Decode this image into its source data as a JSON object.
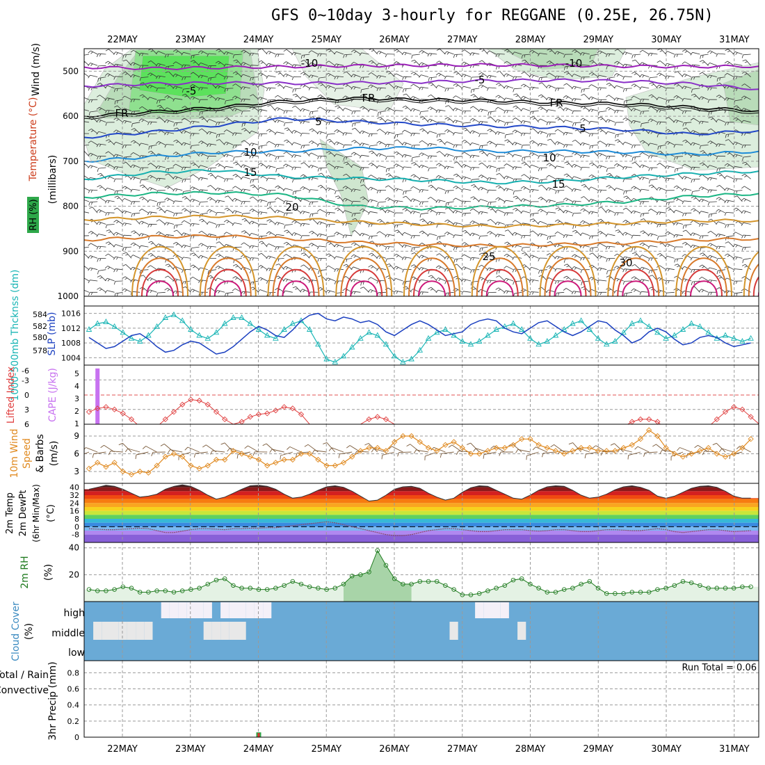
{
  "title": "GFS 0~10day 3-hourly for REGGANE (0.25E, 26.75N)",
  "dates": [
    "22MAY",
    "23MAY",
    "24MAY",
    "25MAY",
    "26MAY",
    "27MAY",
    "28MAY",
    "29MAY",
    "30MAY",
    "31MAY"
  ],
  "colors": {
    "frame": "#000000",
    "grid": "#999999",
    "rh_fill": "#2ea84a",
    "cloud": "#6aaad6",
    "cloud_clear": "#f4f0f8",
    "green_line": "#1e7a1e"
  },
  "chart_data": [
    {
      "type": "heatmap",
      "name": "upper-air",
      "ylabel_parts": [
        "Wind (m/s)",
        "Temperature (°C)",
        "RH (%)",
        "(millibars)"
      ],
      "yticks": [
        500,
        600,
        700,
        800,
        900,
        1000
      ],
      "ylim": [
        450,
        1000
      ],
      "isotherm_labels": [
        "-10",
        "-5",
        "FR",
        "5",
        "10",
        "15",
        "20",
        "25",
        "30"
      ],
      "isotherms": [
        {
          "t": -10,
          "p": [
            491,
            494,
            492,
            490,
            488,
            487,
            486,
            487,
            489,
            490,
            489
          ]
        },
        {
          "t": -5,
          "p": [
            533,
            528,
            526,
            527,
            526,
            524,
            521,
            520,
            522,
            528,
            540
          ]
        },
        {
          "t": 0,
          "p": [
            600,
            590,
            580,
            566,
            560,
            563,
            565,
            570,
            572,
            580,
            588
          ]
        },
        {
          "t": 5,
          "p": [
            647,
            635,
            620,
            605,
            612,
            618,
            622,
            625,
            630,
            640,
            632
          ]
        },
        {
          "t": 10,
          "p": [
            700,
            690,
            680,
            678,
            672,
            670,
            678,
            678,
            680,
            685,
            678
          ]
        },
        {
          "t": 15,
          "p": [
            740,
            725,
            720,
            735,
            738,
            742,
            748,
            745,
            735,
            728,
            722
          ]
        },
        {
          "t": 20,
          "p": [
            780,
            772,
            770,
            775,
            800,
            805,
            802,
            798,
            790,
            778,
            772
          ]
        },
        {
          "t": 25,
          "p": [
            830,
            825,
            822,
            826,
            835,
            840,
            845,
            842,
            838,
            832,
            832
          ]
        },
        {
          "t": 30,
          "p": [
            875,
            868,
            866,
            872,
            880,
            885,
            888,
            885,
            882,
            875,
            872
          ]
        }
      ]
    },
    {
      "type": "line",
      "name": "thickness-slp",
      "ylabel_left": "1000-500mb Thcknss (dm)",
      "ylabel_right": "SLP (mb)",
      "yticks_left": [
        "584",
        "582",
        "580",
        "578"
      ],
      "yticks_right": [
        "1016",
        "1012",
        "1008",
        "1004"
      ],
      "series": [
        {
          "name": "SLP",
          "values": [
            1009.5,
            1008,
            1006.5,
            1007,
            1008.5,
            1010,
            1010.5,
            1009,
            1007,
            1005.5,
            1006,
            1007.5,
            1008.5,
            1008,
            1006.5,
            1005,
            1005.5,
            1007,
            1009,
            1011,
            1012.5,
            1011.5,
            1010,
            1009.5,
            1011.5,
            1014,
            1015.5,
            1016,
            1014.5,
            1014,
            1015,
            1014.5,
            1013.5,
            1014,
            1013,
            1011,
            1010,
            1011.5,
            1013,
            1014,
            1013,
            1011.5,
            1010,
            1010.5,
            1011,
            1013,
            1014,
            1014.5,
            1014,
            1012,
            1011,
            1010.5,
            1012,
            1013.5,
            1014,
            1012.5,
            1011,
            1010,
            1011,
            1012.5,
            1014,
            1013.5,
            1011.5,
            1010,
            1008,
            1009,
            1011,
            1012,
            1011,
            1009,
            1007.5,
            1008,
            1009.5,
            1010,
            1009.5,
            1008,
            1007,
            1007.5,
            1008
          ]
        },
        {
          "name": "Thickness",
          "values": [
            582.5,
            583.5,
            583.8,
            583,
            582,
            581,
            580.5,
            581.5,
            583,
            584.5,
            585,
            584,
            582.5,
            581.5,
            581,
            582,
            583.5,
            584.5,
            584.5,
            583.5,
            582.5,
            581.5,
            581,
            582.5,
            583.5,
            584,
            582.5,
            580,
            577.5,
            577,
            578,
            579.5,
            581,
            582,
            581.5,
            580,
            578,
            577,
            577.5,
            579,
            581,
            582,
            582.5,
            581.5,
            580.5,
            580,
            580.5,
            581.5,
            582.5,
            583,
            583.5,
            582.5,
            581,
            580,
            580.5,
            581.5,
            582.5,
            583.5,
            584,
            582.5,
            581,
            580,
            580.5,
            582,
            583.5,
            584,
            583,
            582,
            581,
            581.5,
            582.5,
            583.5,
            583,
            582,
            581,
            581.5,
            581,
            580.5,
            581
          ]
        }
      ]
    },
    {
      "type": "line",
      "name": "cape-lifted-index",
      "ylabel_left": "Lifted Index",
      "ylabel_right": "CAPE (J/kg)",
      "yticks_left": [
        "-6",
        "-3",
        "0",
        "3",
        "6"
      ],
      "yticks_right": [
        "5",
        "4",
        "3",
        "2",
        "1"
      ],
      "series": [
        {
          "name": "Lifted Index",
          "values": [
            3.5,
            2.8,
            2.5,
            3,
            3.8,
            5,
            6.5,
            7,
            6.5,
            5,
            3.5,
            2,
            1,
            1.2,
            2,
            3.5,
            5,
            6,
            5.5,
            4.5,
            4,
            3.8,
            3.2,
            2.5,
            2.8,
            4,
            6,
            7,
            7.5,
            7,
            7,
            6.5,
            6,
            5,
            4.5,
            5,
            6,
            7,
            7,
            7,
            6.5,
            6.5,
            6.5,
            7,
            7,
            7,
            7,
            7,
            7,
            7,
            7,
            7,
            7,
            7,
            7,
            7,
            7,
            7,
            7,
            7,
            7,
            7,
            7,
            6.5,
            5.5,
            5,
            5,
            5.5,
            7,
            7,
            7,
            7,
            7,
            6.5,
            5,
            3.5,
            2.5,
            3,
            4.5,
            6,
            7
          ]
        },
        {
          "name": "CAPE",
          "values": [
            0,
            5,
            0,
            0,
            0,
            0,
            0,
            0,
            0,
            0,
            0,
            0,
            0,
            0,
            0,
            0,
            0,
            0,
            0,
            0,
            0,
            0,
            0,
            0,
            0,
            0,
            0,
            0,
            0,
            0,
            0,
            0,
            0,
            0,
            0,
            0,
            0,
            0,
            0,
            0,
            0,
            0,
            0,
            0,
            0,
            0,
            0,
            0,
            0,
            0,
            0,
            0,
            0,
            0,
            0,
            0,
            0,
            0,
            0,
            0,
            0,
            0,
            0,
            0,
            0,
            0,
            0,
            0,
            0,
            0,
            0,
            0,
            0,
            0,
            0,
            0,
            0,
            0,
            0
          ]
        }
      ]
    },
    {
      "type": "line",
      "name": "10m-wind",
      "ylabel": "10m Wind Speed & Barbs (m/s)",
      "yticks": [
        "9",
        "6",
        "3"
      ],
      "ylim": [
        1,
        11
      ],
      "series": [
        {
          "name": "Wind Speed",
          "values": [
            3.5,
            4.5,
            3.8,
            4.5,
            3,
            2.5,
            3,
            2.8,
            4,
            5.5,
            6,
            5.5,
            4,
            3.5,
            4,
            5,
            5,
            6.5,
            6,
            5.5,
            5,
            4,
            4.5,
            5,
            5,
            6,
            6,
            5,
            4,
            4,
            4.5,
            5.5,
            6.5,
            7,
            7,
            6.5,
            8,
            9,
            9,
            8,
            7,
            6.5,
            7.5,
            8,
            7,
            6,
            6,
            6.5,
            7,
            7,
            7.5,
            8.5,
            8.5,
            7.5,
            7,
            6.5,
            6,
            6.5,
            7,
            7,
            6.5,
            6.5,
            6.5,
            7,
            7.5,
            8.5,
            10,
            9,
            7,
            6,
            5.5,
            6,
            6.5,
            7,
            6,
            5.5,
            6,
            7,
            8.5
          ]
        }
      ]
    },
    {
      "type": "area",
      "name": "2m-temp",
      "ylabel": "2m Temp 2m DewPt (6hr Min/Max) (°C)",
      "yticks": [
        "40",
        "32",
        "24",
        "16",
        "8",
        "0",
        "-8"
      ],
      "ylim": [
        -16,
        44
      ],
      "series": [
        {
          "name": "2m Temp",
          "values": [
            38,
            40,
            42,
            41,
            38,
            34,
            30,
            31,
            33,
            38,
            41,
            42.5,
            41,
            37,
            32,
            28,
            30,
            34,
            38,
            41.5,
            42,
            41,
            38,
            33,
            29,
            30,
            33,
            37,
            40.5,
            41.5,
            40,
            36,
            31,
            26,
            27,
            32,
            38,
            40.5,
            41,
            39,
            34,
            30,
            27,
            29,
            35,
            39.5,
            41.5,
            41,
            37,
            33,
            29,
            28,
            32,
            37,
            40.5,
            41.5,
            41,
            37,
            32,
            29,
            30,
            33,
            37.5,
            40.5,
            41.5,
            40,
            37,
            31,
            29,
            31,
            35,
            39,
            41,
            41.5,
            40,
            36,
            31,
            29,
            29
          ]
        },
        {
          "name": "2m DewPt",
          "values": [
            -2,
            -2.5,
            -3,
            -3,
            -2.5,
            -2,
            -1.5,
            -2,
            -4,
            -6,
            -6,
            -4.5,
            -3,
            -2,
            -2,
            -2.5,
            -3,
            -2,
            -2,
            -1.5,
            -1.5,
            -1,
            -1,
            0,
            1,
            2,
            3,
            4,
            5,
            4,
            2,
            0,
            -2,
            -4,
            -6,
            -8,
            -9,
            -9,
            -8,
            -6,
            -4,
            -3,
            -2,
            -2,
            -3,
            -4,
            -5,
            -5,
            -4,
            -3,
            -3,
            -3,
            -4,
            -4.5,
            -4,
            -3,
            -3,
            -4,
            -5,
            -5,
            -4,
            -3,
            -3,
            -3.5,
            -4,
            -4,
            -3,
            -2,
            -3,
            -5,
            -6,
            -5,
            -4,
            -3,
            -3,
            -4,
            -5,
            -4.5,
            -4
          ]
        }
      ]
    },
    {
      "type": "area",
      "name": "2m-rh",
      "ylabel": "2m RH (%)",
      "yticks": [
        "40",
        "20"
      ],
      "ylim": [
        0,
        44
      ],
      "series": [
        {
          "name": "2m RH",
          "values": [
            9,
            8,
            8,
            9,
            11,
            10,
            7,
            7,
            8,
            8,
            7,
            8,
            9,
            10,
            13,
            16,
            17,
            12,
            10,
            10,
            9,
            9,
            10,
            12,
            15,
            13,
            11,
            10,
            9,
            10,
            13,
            19,
            20,
            22,
            38,
            27,
            17,
            13,
            13,
            15,
            15,
            15,
            12,
            9,
            5,
            5,
            6,
            8,
            10,
            12,
            16,
            17,
            13,
            10,
            7,
            7,
            9,
            10,
            13,
            15,
            10,
            6,
            6,
            6,
            7,
            7,
            7,
            9,
            10,
            12,
            15,
            14,
            12,
            10,
            10,
            10,
            10,
            11,
            11
          ]
        }
      ]
    },
    {
      "type": "heatmap",
      "name": "cloud-cover",
      "ylabel": "Cloud Cover (%)",
      "levels": [
        "high",
        "middle",
        "low"
      ],
      "high": [
        0,
        0,
        0,
        0,
        0,
        0,
        0,
        0,
        0,
        1,
        1,
        1,
        1,
        1,
        1,
        0,
        1,
        1,
        1,
        1,
        1,
        1,
        0,
        0,
        0,
        0,
        0,
        0,
        0,
        0,
        0,
        0,
        0,
        0,
        0,
        0,
        0,
        0,
        0,
        0,
        0,
        0,
        0,
        0,
        0,
        0,
        1,
        1,
        1,
        1,
        0,
        0,
        0,
        0,
        0,
        0,
        0,
        0,
        0,
        0,
        0,
        0,
        0,
        0,
        0,
        0,
        0,
        0,
        0,
        0,
        0,
        0,
        0,
        0,
        0,
        0,
        0,
        0,
        0
      ],
      "middle": [
        0,
        1,
        1,
        1,
        1,
        1,
        1,
        1,
        0,
        0,
        0,
        0,
        0,
        0,
        1,
        1,
        1,
        1,
        1,
        0,
        0,
        0,
        0,
        0,
        0,
        0,
        0,
        0,
        0,
        0,
        0,
        0,
        0,
        0,
        0,
        0,
        0,
        0,
        0,
        0,
        0,
        0,
        0,
        1,
        0,
        0,
        0,
        0,
        0,
        0,
        0,
        1,
        0,
        0,
        0,
        0,
        0,
        0,
        0,
        0,
        0,
        0,
        0,
        0,
        0,
        0,
        0,
        0,
        0,
        0,
        0,
        0,
        0,
        0,
        0,
        0,
        0,
        0,
        0
      ],
      "low": [
        0,
        0,
        0,
        0,
        0,
        0,
        0,
        0,
        0,
        0,
        0,
        0,
        0,
        0,
        0,
        0,
        0,
        0,
        0,
        0,
        0,
        0,
        0,
        0,
        0,
        0,
        0,
        0,
        0,
        0,
        0,
        0,
        0,
        0,
        0,
        0,
        0,
        0,
        0,
        0,
        0,
        0,
        0,
        0,
        0,
        0,
        0,
        0,
        0,
        0,
        0,
        0,
        0,
        0,
        0,
        0,
        0,
        0,
        0,
        0,
        0,
        0,
        0,
        0,
        0,
        0,
        0,
        0,
        0,
        0,
        0,
        0,
        0,
        0,
        0,
        0,
        0,
        0,
        0
      ]
    },
    {
      "type": "bar",
      "name": "precip",
      "ylabel": "3hr Precip (mm)",
      "legend": [
        "Total / Rain",
        "Convective"
      ],
      "run_total": "Run Total = 0.06",
      "yticks": [
        "0.8",
        "0.6",
        "0.4",
        "0.2",
        "0"
      ],
      "ylim": [
        0,
        0.95
      ],
      "values": [
        0,
        0,
        0,
        0,
        0,
        0,
        0,
        0,
        0,
        0,
        0,
        0,
        0,
        0,
        0,
        0,
        0,
        0,
        0,
        0,
        0.06,
        0,
        0,
        0,
        0,
        0,
        0,
        0,
        0,
        0,
        0,
        0,
        0,
        0,
        0,
        0,
        0,
        0,
        0,
        0,
        0,
        0,
        0,
        0,
        0,
        0,
        0,
        0,
        0,
        0,
        0,
        0,
        0,
        0,
        0,
        0,
        0,
        0,
        0,
        0,
        0,
        0,
        0,
        0,
        0,
        0,
        0,
        0,
        0,
        0,
        0,
        0,
        0,
        0,
        0,
        0,
        0,
        0,
        0
      ]
    }
  ]
}
